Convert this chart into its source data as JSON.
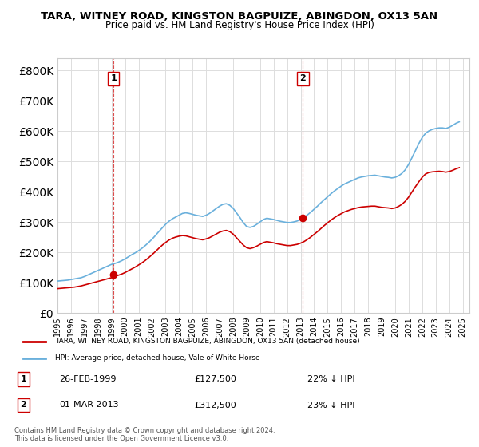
{
  "title": "TARA, WITNEY ROAD, KINGSTON BAGPUIZE, ABINGDON, OX13 5AN",
  "subtitle": "Price paid vs. HM Land Registry's House Price Index (HPI)",
  "ylabel_ticks": [
    "£0",
    "£100K",
    "£200K",
    "£300K",
    "£400K",
    "£500K",
    "£600K",
    "£700K",
    "£800K"
  ],
  "ylim": [
    0,
    840000
  ],
  "xlim_start": 1995.0,
  "xlim_end": 2025.5,
  "hpi_color": "#6ab0dc",
  "price_color": "#cc0000",
  "marker1_year": 1999.15,
  "marker1_price": 127500,
  "marker1_label": "1",
  "marker1_date": "26-FEB-1999",
  "marker1_hpi_pct": "22% ↓ HPI",
  "marker2_year": 2013.17,
  "marker2_price": 312500,
  "marker2_label": "2",
  "marker2_date": "01-MAR-2013",
  "marker2_hpi_pct": "23% ↓ HPI",
  "legend_line1": "TARA, WITNEY ROAD, KINGSTON BAGPUIZE, ABINGDON, OX13 5AN (detached house)",
  "legend_line2": "HPI: Average price, detached house, Vale of White Horse",
  "footer": "Contains HM Land Registry data © Crown copyright and database right 2024.\nThis data is licensed under the Open Government Licence v3.0.",
  "background_color": "#ffffff",
  "grid_color": "#dddddd",
  "hpi_data_x": [
    1995.0,
    1995.25,
    1995.5,
    1995.75,
    1996.0,
    1996.25,
    1996.5,
    1996.75,
    1997.0,
    1997.25,
    1997.5,
    1997.75,
    1998.0,
    1998.25,
    1998.5,
    1998.75,
    1999.0,
    1999.25,
    1999.5,
    1999.75,
    2000.0,
    2000.25,
    2000.5,
    2000.75,
    2001.0,
    2001.25,
    2001.5,
    2001.75,
    2002.0,
    2002.25,
    2002.5,
    2002.75,
    2003.0,
    2003.25,
    2003.5,
    2003.75,
    2004.0,
    2004.25,
    2004.5,
    2004.75,
    2005.0,
    2005.25,
    2005.5,
    2005.75,
    2006.0,
    2006.25,
    2006.5,
    2006.75,
    2007.0,
    2007.25,
    2007.5,
    2007.75,
    2008.0,
    2008.25,
    2008.5,
    2008.75,
    2009.0,
    2009.25,
    2009.5,
    2009.75,
    2010.0,
    2010.25,
    2010.5,
    2010.75,
    2011.0,
    2011.25,
    2011.5,
    2011.75,
    2012.0,
    2012.25,
    2012.5,
    2012.75,
    2013.0,
    2013.25,
    2013.5,
    2013.75,
    2014.0,
    2014.25,
    2014.5,
    2014.75,
    2015.0,
    2015.25,
    2015.5,
    2015.75,
    2016.0,
    2016.25,
    2016.5,
    2016.75,
    2017.0,
    2017.25,
    2017.5,
    2017.75,
    2018.0,
    2018.25,
    2018.5,
    2018.75,
    2019.0,
    2019.25,
    2019.5,
    2019.75,
    2020.0,
    2020.25,
    2020.5,
    2020.75,
    2021.0,
    2021.25,
    2021.5,
    2021.75,
    2022.0,
    2022.25,
    2022.5,
    2022.75,
    2023.0,
    2023.25,
    2023.5,
    2023.75,
    2024.0,
    2024.25,
    2024.5,
    2024.75
  ],
  "hpi_data_y": [
    105000,
    106000,
    107000,
    108000,
    110000,
    112000,
    114000,
    116000,
    120000,
    125000,
    130000,
    135000,
    140000,
    145000,
    150000,
    155000,
    160000,
    163000,
    167000,
    172000,
    178000,
    185000,
    192000,
    198000,
    205000,
    213000,
    222000,
    232000,
    243000,
    255000,
    268000,
    280000,
    292000,
    302000,
    310000,
    316000,
    322000,
    328000,
    330000,
    328000,
    325000,
    322000,
    320000,
    318000,
    322000,
    328000,
    336000,
    344000,
    352000,
    358000,
    360000,
    355000,
    345000,
    330000,
    315000,
    298000,
    285000,
    282000,
    285000,
    292000,
    300000,
    308000,
    312000,
    310000,
    308000,
    305000,
    302000,
    300000,
    298000,
    298000,
    300000,
    303000,
    308000,
    315000,
    323000,
    332000,
    342000,
    352000,
    363000,
    373000,
    383000,
    393000,
    402000,
    410000,
    418000,
    425000,
    430000,
    435000,
    440000,
    445000,
    448000,
    450000,
    452000,
    453000,
    454000,
    452000,
    450000,
    448000,
    447000,
    445000,
    447000,
    452000,
    460000,
    472000,
    490000,
    512000,
    535000,
    558000,
    578000,
    592000,
    600000,
    605000,
    608000,
    610000,
    610000,
    608000,
    612000,
    618000,
    625000,
    630000
  ],
  "price_data_x": [
    1995.0,
    1995.25,
    1995.5,
    1995.75,
    1996.0,
    1996.25,
    1996.5,
    1996.75,
    1997.0,
    1997.25,
    1997.5,
    1997.75,
    1998.0,
    1998.25,
    1998.5,
    1998.75,
    1999.0,
    1999.25,
    1999.5,
    1999.75,
    2000.0,
    2000.25,
    2000.5,
    2000.75,
    2001.0,
    2001.25,
    2001.5,
    2001.75,
    2002.0,
    2002.25,
    2002.5,
    2002.75,
    2003.0,
    2003.25,
    2003.5,
    2003.75,
    2004.0,
    2004.25,
    2004.5,
    2004.75,
    2005.0,
    2005.25,
    2005.5,
    2005.75,
    2006.0,
    2006.25,
    2006.5,
    2006.75,
    2007.0,
    2007.25,
    2007.5,
    2007.75,
    2008.0,
    2008.25,
    2008.5,
    2008.75,
    2009.0,
    2009.25,
    2009.5,
    2009.75,
    2010.0,
    2010.25,
    2010.5,
    2010.75,
    2011.0,
    2011.25,
    2011.5,
    2011.75,
    2012.0,
    2012.25,
    2012.5,
    2012.75,
    2013.0,
    2013.25,
    2013.5,
    2013.75,
    2014.0,
    2014.25,
    2014.5,
    2014.75,
    2015.0,
    2015.25,
    2015.5,
    2015.75,
    2016.0,
    2016.25,
    2016.5,
    2016.75,
    2017.0,
    2017.25,
    2017.5,
    2017.75,
    2018.0,
    2018.25,
    2018.5,
    2018.75,
    2019.0,
    2019.25,
    2019.5,
    2019.75,
    2020.0,
    2020.25,
    2020.5,
    2020.75,
    2021.0,
    2021.25,
    2021.5,
    2021.75,
    2022.0,
    2022.25,
    2022.5,
    2022.75,
    2023.0,
    2023.25,
    2023.5,
    2023.75,
    2024.0,
    2024.25,
    2024.5,
    2024.75
  ],
  "price_data_y": [
    80000,
    81000,
    82000,
    83000,
    84000,
    85000,
    87000,
    89000,
    92000,
    95000,
    98000,
    101000,
    104000,
    107000,
    110000,
    113000,
    116000,
    120000,
    124000,
    128000,
    133000,
    139000,
    145000,
    151000,
    158000,
    165000,
    173000,
    182000,
    192000,
    202000,
    213000,
    223000,
    232000,
    240000,
    246000,
    250000,
    253000,
    255000,
    254000,
    251000,
    248000,
    245000,
    243000,
    241000,
    244000,
    248000,
    254000,
    260000,
    266000,
    270000,
    272000,
    268000,
    260000,
    248000,
    236000,
    224000,
    215000,
    212000,
    215000,
    220000,
    226000,
    232000,
    235000,
    233000,
    231000,
    228000,
    226000,
    224000,
    222000,
    222000,
    224000,
    226000,
    230000,
    235000,
    242000,
    250000,
    259000,
    268000,
    278000,
    288000,
    297000,
    306000,
    314000,
    321000,
    327000,
    333000,
    337000,
    341000,
    344000,
    347000,
    349000,
    350000,
    351000,
    352000,
    352000,
    350000,
    348000,
    347000,
    346000,
    344000,
    346000,
    351000,
    358000,
    368000,
    382000,
    399000,
    416000,
    432000,
    447000,
    458000,
    463000,
    465000,
    466000,
    467000,
    466000,
    464000,
    466000,
    470000,
    475000,
    479000
  ]
}
